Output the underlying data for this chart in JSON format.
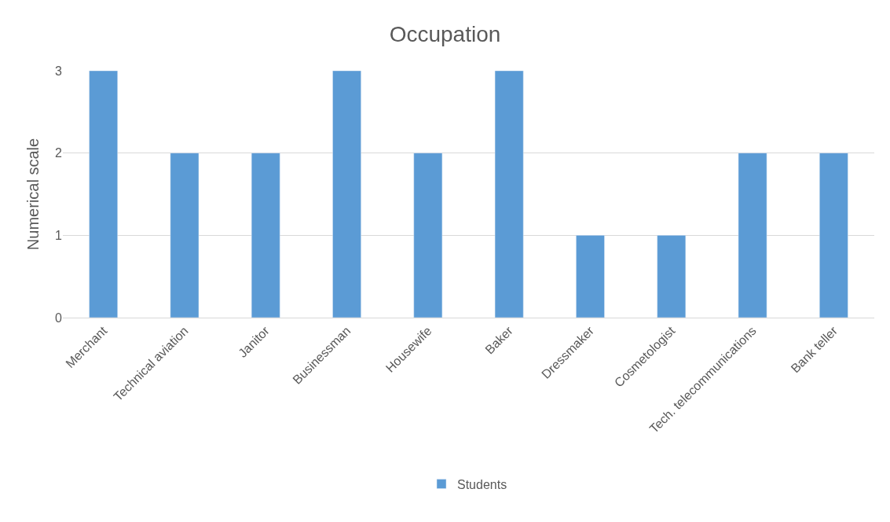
{
  "chart_data": {
    "type": "bar",
    "title": "Occupation",
    "ylabel": "Numerical scale",
    "categories": [
      "Merchant",
      "Technical aviation",
      "Janitor",
      "Businessman",
      "Housewife",
      "Baker",
      "Dressmaker",
      "Cosmetologist",
      "Tech. telecommunications",
      "Bank teller"
    ],
    "series": [
      {
        "name": "Students",
        "color": "#5b9bd5",
        "values": [
          3,
          2,
          2,
          3,
          2,
          3,
          1,
          1,
          2,
          2
        ]
      }
    ],
    "ylim": [
      0,
      3
    ],
    "yticks": [
      0,
      1,
      2,
      3
    ],
    "grid": "y",
    "legend": "bottom"
  }
}
